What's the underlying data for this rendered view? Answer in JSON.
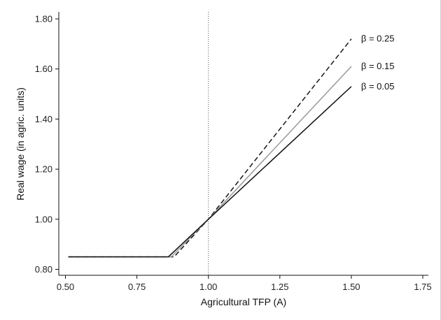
{
  "chart_data": {
    "type": "line",
    "title": "",
    "xlabel": "Agricultural TFP (A)",
    "ylabel": "Real wage (in agric. units)",
    "xlim": [
      0.5,
      1.75
    ],
    "ylim": [
      0.8,
      1.8
    ],
    "x_ticks": [
      "0.50",
      "0.75",
      "1.00",
      "1.25",
      "1.50",
      "1.75"
    ],
    "y_ticks": [
      "0.80",
      "1.00",
      "1.20",
      "1.40",
      "1.60",
      "1.80"
    ],
    "grid": false,
    "legend": "none (series labelled at line ends)",
    "reference_lines": [
      {
        "orientation": "vertical",
        "x": 1.0,
        "style": "dotted"
      }
    ],
    "series": [
      {
        "name": "β = 0.25",
        "style": "dashed",
        "color": "#111111",
        "points": [
          [
            0.51,
            0.85
          ],
          [
            0.88,
            0.85
          ],
          [
            1.0,
            1.0
          ],
          [
            1.5,
            1.72
          ]
        ]
      },
      {
        "name": "β = 0.15",
        "style": "solid",
        "color": "#999999",
        "points": [
          [
            0.51,
            0.85
          ],
          [
            0.87,
            0.85
          ],
          [
            1.0,
            1.0
          ],
          [
            1.5,
            1.61
          ]
        ]
      },
      {
        "name": "β = 0.05",
        "style": "solid",
        "color": "#111111",
        "points": [
          [
            0.51,
            0.85
          ],
          [
            0.86,
            0.85
          ],
          [
            1.0,
            1.0
          ],
          [
            1.5,
            1.53
          ]
        ]
      }
    ]
  }
}
